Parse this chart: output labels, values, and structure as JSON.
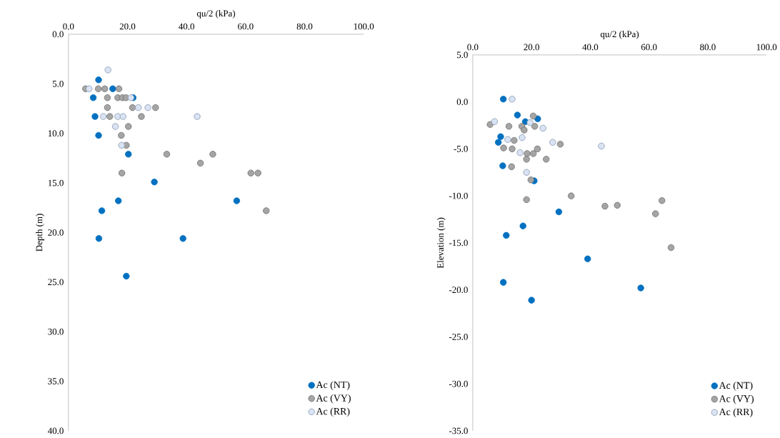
{
  "chart_data": [
    {
      "type": "scatter",
      "xlabel": "qu/2 (kPa)",
      "ylabel": "Depth (m)",
      "xlim": [
        0,
        100
      ],
      "xticks": [
        {
          "value": 0,
          "label": "0.0"
        },
        {
          "value": 20,
          "label": "20.0"
        },
        {
          "value": 40,
          "label": "40.0"
        },
        {
          "value": 60,
          "label": "60.0"
        },
        {
          "value": 80,
          "label": "80.0"
        },
        {
          "value": 100,
          "label": "100.0"
        }
      ],
      "ylim": [
        40,
        0
      ],
      "yticks": [
        {
          "value": 0,
          "label": "0.0"
        },
        {
          "value": 5,
          "label": "5.0"
        },
        {
          "value": 10,
          "label": "10.0"
        },
        {
          "value": 15,
          "label": "15.0"
        },
        {
          "value": 20,
          "label": "20.0"
        },
        {
          "value": 25,
          "label": "25.0"
        },
        {
          "value": 30,
          "label": "30.0"
        },
        {
          "value": 35,
          "label": "35.0"
        },
        {
          "value": 40,
          "label": "40.0"
        }
      ],
      "legend": "bottom right",
      "marker": "circle",
      "series": [
        {
          "name": "Ac (NT)",
          "color": "#0070c0",
          "x": [
            10.2,
            15.0,
            8.4,
            21.9,
            9.0,
            10.2,
            20.3,
            29.1,
            16.9,
            57.0,
            11.3,
            10.3,
            38.8,
            19.6
          ],
          "values": [
            4.6,
            5.5,
            6.4,
            6.4,
            8.3,
            10.2,
            12.1,
            14.9,
            16.8,
            16.8,
            17.8,
            20.6,
            20.6,
            24.4
          ]
        },
        {
          "name": "Ac (VY)",
          "color": "#a5a5a5",
          "x": [
            5.8,
            10.1,
            12.3,
            17.1,
            13.2,
            16.7,
            18.3,
            19.5,
            13.2,
            21.7,
            29.5,
            14.0,
            24.7,
            20.3,
            17.9,
            19.6,
            33.3,
            48.9,
            44.7,
            18.1,
            61.8,
            64.2,
            67.0
          ],
          "values": [
            5.5,
            5.5,
            5.5,
            5.5,
            6.4,
            6.4,
            6.4,
            6.4,
            7.4,
            7.4,
            7.4,
            8.3,
            8.3,
            9.3,
            10.2,
            11.2,
            12.1,
            12.1,
            13.0,
            14.0,
            14.0,
            14.0,
            17.8
          ]
        },
        {
          "name": "Ac (RR)",
          "color": "#dae3f3",
          "x": [
            13.4,
            7.0,
            21.2,
            23.7,
            26.9,
            11.8,
            16.7,
            18.5,
            43.6,
            15.9,
            18.0
          ],
          "values": [
            3.6,
            5.5,
            6.4,
            7.4,
            7.4,
            8.3,
            8.3,
            8.3,
            8.3,
            9.3,
            11.2
          ]
        }
      ]
    },
    {
      "type": "scatter",
      "xlabel": "qu/2 (kPa)",
      "ylabel": "Elevation (m)",
      "xlim": [
        0,
        100
      ],
      "xticks": [
        {
          "value": 0,
          "label": "0.0"
        },
        {
          "value": 20,
          "label": "20.0"
        },
        {
          "value": 40,
          "label": "40.0"
        },
        {
          "value": 60,
          "label": "60.0"
        },
        {
          "value": 80,
          "label": "80.0"
        },
        {
          "value": 100,
          "label": "100.0"
        }
      ],
      "ylim": [
        -35,
        5
      ],
      "yticks": [
        {
          "value": -35,
          "label": "-35.0"
        },
        {
          "value": -30,
          "label": "-30.0"
        },
        {
          "value": -25,
          "label": "-25.0"
        },
        {
          "value": -20,
          "label": "-20.0"
        },
        {
          "value": -15,
          "label": "-15.0"
        },
        {
          "value": -10,
          "label": "-10.0"
        },
        {
          "value": -5,
          "label": "-5.0"
        },
        {
          "value": 0,
          "label": "0.0"
        },
        {
          "value": 5,
          "label": "5.0"
        }
      ],
      "legend": "bottom right",
      "marker": "circle",
      "series": [
        {
          "name": "Ac (NT)",
          "color": "#0070c0",
          "x": [
            10.4,
            15.2,
            22.1,
            17.9,
            9.5,
            8.7,
            10.2,
            20.9,
            29.3,
            17.1,
            11.4,
            39.1,
            10.4,
            57.2,
            20.0
          ],
          "values": [
            0.3,
            -1.4,
            -1.8,
            -2.1,
            -3.7,
            -4.3,
            -6.8,
            -8.4,
            -11.7,
            -13.2,
            -14.2,
            -16.7,
            -19.2,
            -19.8,
            -21.1
          ]
        },
        {
          "name": "Ac (VY)",
          "color": "#a5a5a5",
          "x": [
            20.6,
            5.9,
            12.3,
            16.7,
            21.1,
            17.5,
            14.1,
            29.8,
            10.5,
            13.4,
            18.5,
            20.6,
            22.0,
            18.3,
            25.0,
            13.2,
            19.8,
            18.3,
            33.5,
            45.0,
            49.2,
            64.4,
            62.2,
            67.5
          ],
          "values": [
            -1.5,
            -2.4,
            -2.6,
            -2.6,
            -2.6,
            -3.0,
            -4.1,
            -4.5,
            -4.9,
            -5.0,
            -5.5,
            -5.5,
            -5.0,
            -6.1,
            -6.1,
            -6.9,
            -8.3,
            -10.4,
            -10.0,
            -11.1,
            -11.0,
            -10.5,
            -11.9,
            -15.5
          ]
        },
        {
          "name": "Ac (RR)",
          "color": "#dae3f3",
          "x": [
            13.4,
            19.5,
            7.4,
            23.9,
            11.9,
            16.8,
            27.2,
            43.8,
            16.1,
            18.3
          ],
          "values": [
            0.3,
            -2.2,
            -2.1,
            -2.8,
            -4.0,
            -3.8,
            -4.3,
            -4.7,
            -5.4,
            -7.5
          ]
        }
      ]
    }
  ]
}
